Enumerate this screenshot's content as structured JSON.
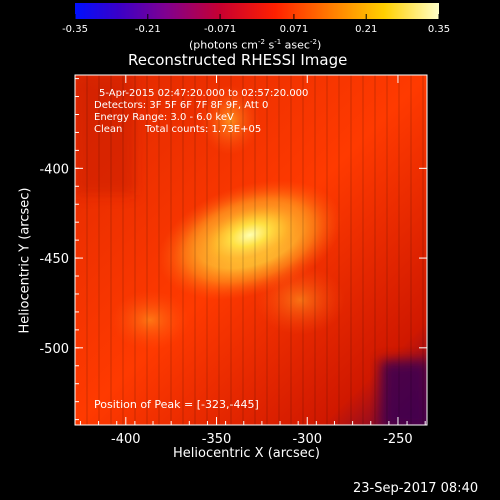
{
  "chart_data": {
    "type": "heatmap",
    "title": "Reconstructed RHESSI Image",
    "xlabel": "Heliocentric X (arcsec)",
    "ylabel": "Heliocentric Y (arcsec)",
    "xlim": [
      -428,
      -234
    ],
    "ylim": [
      -543,
      -348
    ],
    "x_ticks": [
      -400,
      -350,
      -300,
      -250
    ],
    "y_ticks": [
      -400,
      -450,
      -500
    ],
    "x_tick_labels": [
      "-400",
      "-350",
      "-300",
      "-250"
    ],
    "y_tick_labels": [
      "-400",
      "-450",
      "-500"
    ],
    "colorbar": {
      "range": [
        -0.35,
        0.35
      ],
      "ticks": [
        -0.35,
        -0.21,
        -0.071,
        0.071,
        0.21,
        0.35
      ],
      "tick_labels": [
        "-0.35",
        "-0.21",
        "-0.071",
        "0.071",
        "0.21",
        "0.35"
      ],
      "label_pre": "(photons cm",
      "label_exp1": "-2",
      "label_mid": " s",
      "label_exp2": "-1",
      "label_mid2": " asec",
      "label_exp3": "-2",
      "label_post": ")",
      "colormap": "red-temperature (blue-purple-red-orange-yellow-white)"
    },
    "info_lines": [
      "5-Apr-2015 02:47:20.000 to 02:57:20.000",
      "Detectors: 3F 5F 6F 7F 8F 9F, Att 0",
      "Energy Range: 3.0 - 6.0 keV"
    ],
    "clean_label": "Clean",
    "total_counts": "Total counts: 1.73E+05",
    "peak_label": "Position of Peak = [-323,-445]",
    "peak": [
      -323,
      -445
    ],
    "timestamp": "23-Sep-2017 08:40"
  }
}
